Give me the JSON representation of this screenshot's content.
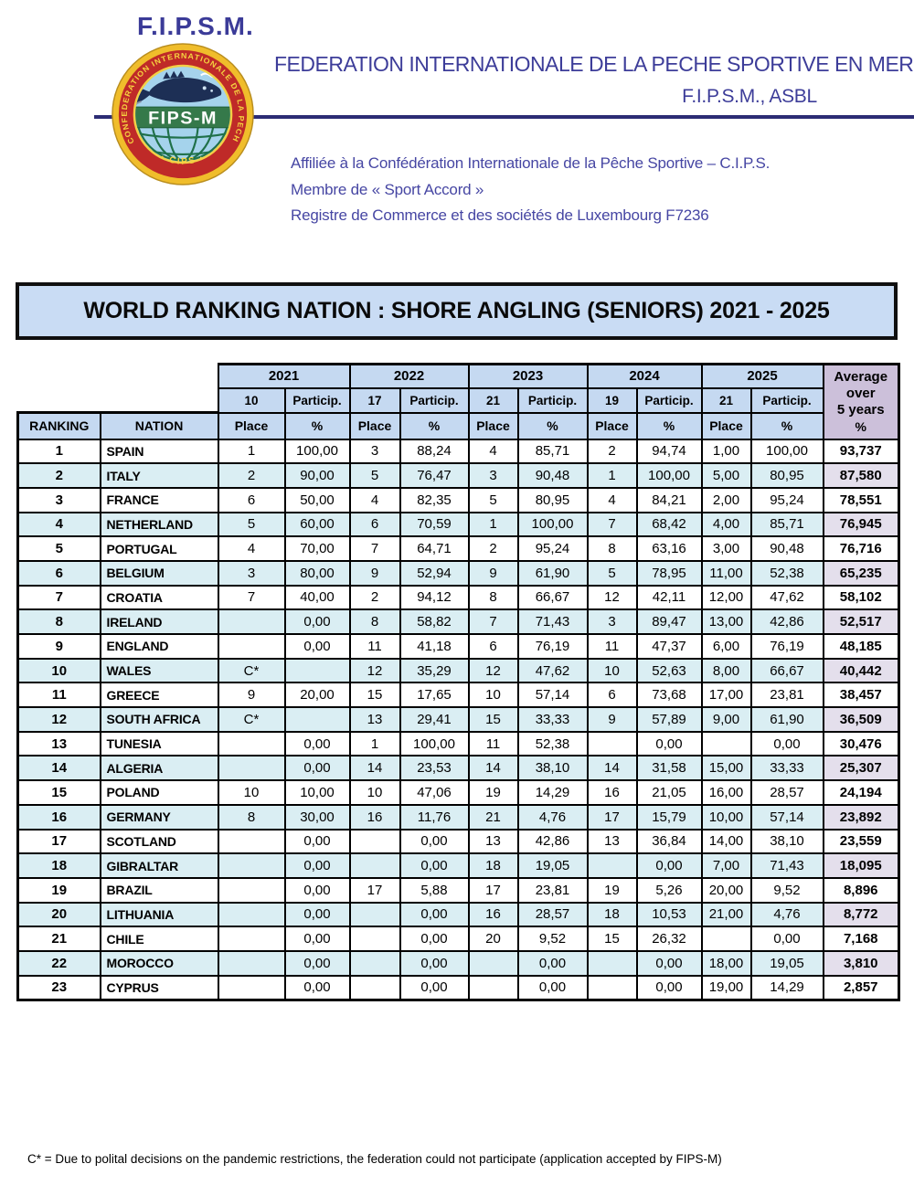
{
  "header": {
    "org_abbr": "F.I.P.S.M.",
    "org_name": "FEDERATION INTERNATIONALE DE LA PECHE SPORTIVE EN MER",
    "org_sub": "F.I.P.S.M., ASBL",
    "affiliation_lines": [
      "Affiliée à la Confédération Internationale de la Pêche Sportive – C.I.P.S.",
      "Membre de « Sport Accord »",
      "Registre de Commerce et des sociétés de Luxembourg F7236"
    ],
    "logo": {
      "ring_text": "CONFEDERATION  INTERNATIONALE  DE  LA  PECHE  SPORTIVE",
      "ring_bottom_text": "· CIPS ·",
      "band_text": "FIPS-M"
    }
  },
  "title_banner": "WORLD RANKING NATION : SHORE ANGLING (SENIORS) 2021 - 2025",
  "table": {
    "ranking_label": "RANKING",
    "nation_label": "NATION",
    "particip_label": "Particip.",
    "place_label": "Place",
    "pct_label": "%",
    "average_header": [
      "Average",
      "over",
      "5 years",
      "%"
    ],
    "years": [
      {
        "year": "2021",
        "events": "10"
      },
      {
        "year": "2022",
        "events": "17"
      },
      {
        "year": "2023",
        "events": "21"
      },
      {
        "year": "2024",
        "events": "19"
      },
      {
        "year": "2025",
        "events": "21"
      }
    ],
    "rows": [
      {
        "rank": "1",
        "nation": "SPAIN",
        "cells": [
          "1",
          "100,00",
          "3",
          "88,24",
          "4",
          "85,71",
          "2",
          "94,74",
          "1,00",
          "100,00"
        ],
        "avg": "93,737"
      },
      {
        "rank": "2",
        "nation": "ITALY",
        "cells": [
          "2",
          "90,00",
          "5",
          "76,47",
          "3",
          "90,48",
          "1",
          "100,00",
          "5,00",
          "80,95"
        ],
        "avg": "87,580"
      },
      {
        "rank": "3",
        "nation": "FRANCE",
        "cells": [
          "6",
          "50,00",
          "4",
          "82,35",
          "5",
          "80,95",
          "4",
          "84,21",
          "2,00",
          "95,24"
        ],
        "avg": "78,551"
      },
      {
        "rank": "4",
        "nation": "NETHERLAND",
        "cells": [
          "5",
          "60,00",
          "6",
          "70,59",
          "1",
          "100,00",
          "7",
          "68,42",
          "4,00",
          "85,71"
        ],
        "avg": "76,945"
      },
      {
        "rank": "5",
        "nation": "PORTUGAL",
        "cells": [
          "4",
          "70,00",
          "7",
          "64,71",
          "2",
          "95,24",
          "8",
          "63,16",
          "3,00",
          "90,48"
        ],
        "avg": "76,716"
      },
      {
        "rank": "6",
        "nation": "BELGIUM",
        "cells": [
          "3",
          "80,00",
          "9",
          "52,94",
          "9",
          "61,90",
          "5",
          "78,95",
          "11,00",
          "52,38"
        ],
        "avg": "65,235"
      },
      {
        "rank": "7",
        "nation": "CROATIA",
        "cells": [
          "7",
          "40,00",
          "2",
          "94,12",
          "8",
          "66,67",
          "12",
          "42,11",
          "12,00",
          "47,62"
        ],
        "avg": "58,102"
      },
      {
        "rank": "8",
        "nation": "IRELAND",
        "cells": [
          "",
          "0,00",
          "8",
          "58,82",
          "7",
          "71,43",
          "3",
          "89,47",
          "13,00",
          "42,86"
        ],
        "avg": "52,517"
      },
      {
        "rank": "9",
        "nation": "ENGLAND",
        "cells": [
          "",
          "0,00",
          "11",
          "41,18",
          "6",
          "76,19",
          "11",
          "47,37",
          "6,00",
          "76,19"
        ],
        "avg": "48,185"
      },
      {
        "rank": "10",
        "nation": "WALES",
        "cells": [
          "C*",
          "",
          "12",
          "35,29",
          "12",
          "47,62",
          "10",
          "52,63",
          "8,00",
          "66,67"
        ],
        "avg": "40,442"
      },
      {
        "rank": "11",
        "nation": "GREECE",
        "cells": [
          "9",
          "20,00",
          "15",
          "17,65",
          "10",
          "57,14",
          "6",
          "73,68",
          "17,00",
          "23,81"
        ],
        "avg": "38,457"
      },
      {
        "rank": "12",
        "nation": "SOUTH AFRICA",
        "cells": [
          "C*",
          "",
          "13",
          "29,41",
          "15",
          "33,33",
          "9",
          "57,89",
          "9,00",
          "61,90"
        ],
        "avg": "36,509"
      },
      {
        "rank": "13",
        "nation": "TUNESIA",
        "cells": [
          "",
          "0,00",
          "1",
          "100,00",
          "11",
          "52,38",
          "",
          "0,00",
          "",
          "0,00"
        ],
        "avg": "30,476"
      },
      {
        "rank": "14",
        "nation": "ALGERIA",
        "cells": [
          "",
          "0,00",
          "14",
          "23,53",
          "14",
          "38,10",
          "14",
          "31,58",
          "15,00",
          "33,33"
        ],
        "avg": "25,307"
      },
      {
        "rank": "15",
        "nation": "POLAND",
        "cells": [
          "10",
          "10,00",
          "10",
          "47,06",
          "19",
          "14,29",
          "16",
          "21,05",
          "16,00",
          "28,57"
        ],
        "avg": "24,194"
      },
      {
        "rank": "16",
        "nation": "GERMANY",
        "cells": [
          "8",
          "30,00",
          "16",
          "11,76",
          "21",
          "4,76",
          "17",
          "15,79",
          "10,00",
          "57,14"
        ],
        "avg": "23,892"
      },
      {
        "rank": "17",
        "nation": "SCOTLAND",
        "cells": [
          "",
          "0,00",
          "",
          "0,00",
          "13",
          "42,86",
          "13",
          "36,84",
          "14,00",
          "38,10"
        ],
        "avg": "23,559"
      },
      {
        "rank": "18",
        "nation": "GIBRALTAR",
        "cells": [
          "",
          "0,00",
          "",
          "0,00",
          "18",
          "19,05",
          "",
          "0,00",
          "7,00",
          "71,43"
        ],
        "avg": "18,095"
      },
      {
        "rank": "19",
        "nation": "BRAZIL",
        "cells": [
          "",
          "0,00",
          "17",
          "5,88",
          "17",
          "23,81",
          "19",
          "5,26",
          "20,00",
          "9,52"
        ],
        "avg": "8,896"
      },
      {
        "rank": "20",
        "nation": "LITHUANIA",
        "cells": [
          "",
          "0,00",
          "",
          "0,00",
          "16",
          "28,57",
          "18",
          "10,53",
          "21,00",
          "4,76"
        ],
        "avg": "8,772"
      },
      {
        "rank": "21",
        "nation": "CHILE",
        "cells": [
          "",
          "0,00",
          "",
          "0,00",
          "20",
          "9,52",
          "15",
          "26,32",
          "",
          "0,00"
        ],
        "avg": "7,168"
      },
      {
        "rank": "22",
        "nation": "MOROCCO",
        "cells": [
          "",
          "0,00",
          "",
          "0,00",
          "",
          "0,00",
          "",
          "0,00",
          "18,00",
          "19,05"
        ],
        "avg": "3,810"
      },
      {
        "rank": "23",
        "nation": "CYPRUS",
        "cells": [
          "",
          "0,00",
          "",
          "0,00",
          "",
          "0,00",
          "",
          "0,00",
          "19,00",
          "14,29"
        ],
        "avg": "2,857"
      }
    ]
  },
  "footnote": "C* = Due to polital decisions on the pandemic restrictions, the federation could not participate (application accepted by FIPS-M)",
  "colors": {
    "brand_blue": "#3b3b98",
    "rule_navy": "#2c2c74",
    "banner_bg": "#c9dcf4",
    "header_bg": "#c5d9f1",
    "avg_header_bg": "#ccc0da",
    "row_alt_bg": "#daeef3",
    "avg_alt_bg": "#e4dfec"
  }
}
